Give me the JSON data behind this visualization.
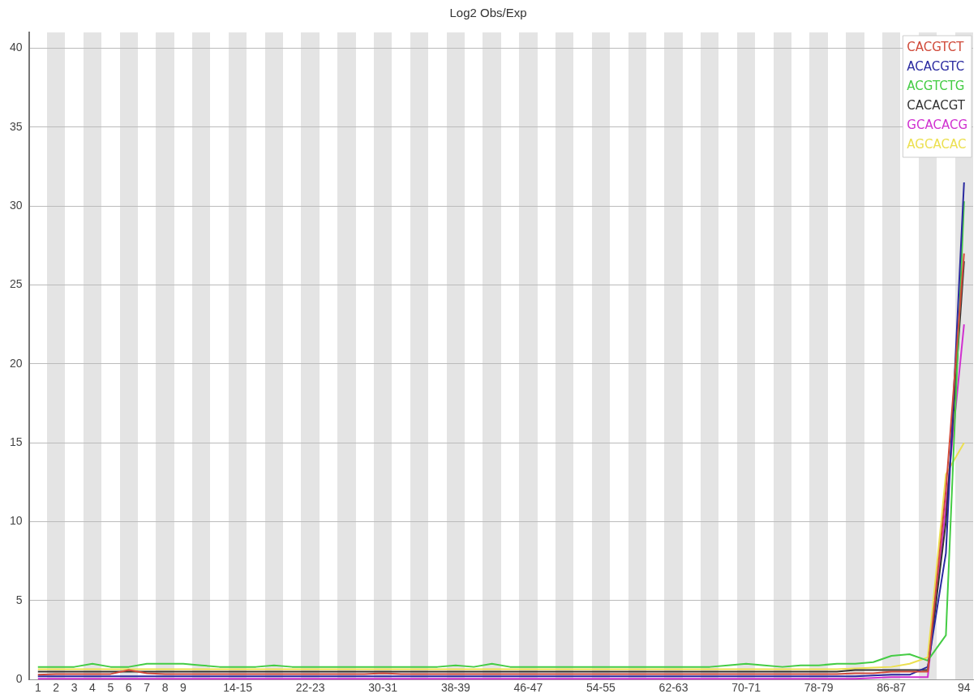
{
  "chart_data": {
    "type": "line",
    "title": "Log2 Obs/Exp",
    "categories": [
      "1",
      "2",
      "3",
      "4",
      "5",
      "6",
      "7",
      "8",
      "9",
      null,
      null,
      "14-15",
      null,
      null,
      null,
      "22-23",
      null,
      null,
      null,
      "30-31",
      null,
      null,
      null,
      "38-39",
      null,
      null,
      null,
      "46-47",
      null,
      null,
      null,
      "54-55",
      null,
      null,
      null,
      "62-63",
      null,
      null,
      null,
      "70-71",
      null,
      null,
      null,
      "78-79",
      null,
      null,
      null,
      "86-87",
      null,
      null,
      null,
      "94"
    ],
    "series": [
      {
        "name": "CACGTCT",
        "color": "#d04a3a",
        "values": [
          0.3,
          0.35,
          0.35,
          0.35,
          0.35,
          0.6,
          0.4,
          0.35,
          0.35,
          0.35,
          0.35,
          0.35,
          0.35,
          0.35,
          0.35,
          0.35,
          0.35,
          0.35,
          0.35,
          0.4,
          0.35,
          0.35,
          0.35,
          0.35,
          0.35,
          0.35,
          0.35,
          0.35,
          0.35,
          0.35,
          0.35,
          0.35,
          0.35,
          0.35,
          0.35,
          0.35,
          0.35,
          0.35,
          0.35,
          0.35,
          0.35,
          0.35,
          0.35,
          0.35,
          0.35,
          0.4,
          0.4,
          0.5,
          0.5,
          0.5,
          12,
          27
        ]
      },
      {
        "name": "ACACGTC",
        "color": "#2a2aa0",
        "values": [
          0.2,
          0.2,
          0.2,
          0.2,
          0.2,
          0.2,
          0.2,
          0.2,
          0.2,
          0.2,
          0.2,
          0.2,
          0.2,
          0.2,
          0.2,
          0.2,
          0.2,
          0.2,
          0.2,
          0.2,
          0.2,
          0.2,
          0.2,
          0.2,
          0.2,
          0.2,
          0.2,
          0.2,
          0.2,
          0.2,
          0.2,
          0.2,
          0.2,
          0.2,
          0.2,
          0.2,
          0.2,
          0.2,
          0.2,
          0.2,
          0.2,
          0.2,
          0.2,
          0.2,
          0.2,
          0.2,
          0.25,
          0.3,
          0.3,
          0.8,
          8,
          31.5
        ]
      },
      {
        "name": "ACGTCTG",
        "color": "#44cc44",
        "values": [
          0.8,
          0.8,
          0.8,
          1,
          0.8,
          0.8,
          1,
          1,
          1,
          0.9,
          0.8,
          0.8,
          0.8,
          0.9,
          0.8,
          0.8,
          0.8,
          0.8,
          0.8,
          0.8,
          0.8,
          0.8,
          0.8,
          0.9,
          0.8,
          1,
          0.8,
          0.8,
          0.8,
          0.8,
          0.8,
          0.8,
          0.8,
          0.8,
          0.8,
          0.8,
          0.8,
          0.8,
          0.9,
          1,
          0.9,
          0.8,
          0.9,
          0.9,
          1,
          1,
          1.1,
          1.5,
          1.6,
          1.2,
          2.8,
          30.3
        ]
      },
      {
        "name": "CACACGT",
        "color": "#333333",
        "values": [
          0.5,
          0.5,
          0.5,
          0.5,
          0.5,
          0.5,
          0.5,
          0.5,
          0.5,
          0.5,
          0.5,
          0.5,
          0.5,
          0.5,
          0.5,
          0.5,
          0.5,
          0.5,
          0.5,
          0.5,
          0.5,
          0.5,
          0.5,
          0.5,
          0.5,
          0.5,
          0.5,
          0.5,
          0.5,
          0.5,
          0.5,
          0.5,
          0.5,
          0.5,
          0.5,
          0.5,
          0.5,
          0.5,
          0.5,
          0.5,
          0.5,
          0.5,
          0.5,
          0.5,
          0.5,
          0.6,
          0.6,
          0.6,
          0.6,
          0.6,
          10,
          26.5
        ]
      },
      {
        "name": "GCACACG",
        "color": "#d030d0",
        "values": [
          0.05,
          0.05,
          0.05,
          0.05,
          0.05,
          0.05,
          0.05,
          0.05,
          0.05,
          0.05,
          0.05,
          0.05,
          0.05,
          0.05,
          0.05,
          0.05,
          0.05,
          0.05,
          0.05,
          0.05,
          0.05,
          0.05,
          0.05,
          0.05,
          0.05,
          0.05,
          0.05,
          0.05,
          0.05,
          0.05,
          0.05,
          0.05,
          0.05,
          0.05,
          0.05,
          0.05,
          0.05,
          0.05,
          0.05,
          0.05,
          0.05,
          0.05,
          0.05,
          0.05,
          0.05,
          0.05,
          0.1,
          0.15,
          0.15,
          0.15,
          11,
          22.5
        ]
      },
      {
        "name": "AGCACAC",
        "color": "#ece050",
        "values": [
          0.65,
          0.65,
          0.65,
          0.65,
          0.65,
          0.65,
          0.65,
          0.65,
          0.65,
          0.65,
          0.65,
          0.65,
          0.65,
          0.65,
          0.65,
          0.65,
          0.65,
          0.65,
          0.65,
          0.65,
          0.65,
          0.65,
          0.65,
          0.65,
          0.65,
          0.65,
          0.65,
          0.65,
          0.65,
          0.65,
          0.65,
          0.65,
          0.65,
          0.65,
          0.65,
          0.65,
          0.65,
          0.65,
          0.65,
          0.65,
          0.65,
          0.65,
          0.65,
          0.65,
          0.65,
          0.7,
          0.75,
          0.8,
          1,
          1.4,
          13,
          15
        ]
      }
    ],
    "ylim": [
      0,
      41
    ],
    "yticks": [
      0,
      5,
      10,
      15,
      20,
      25,
      30,
      35,
      40
    ],
    "grid": "y",
    "legend": "top right",
    "marker": "none",
    "line_style": "solid"
  }
}
